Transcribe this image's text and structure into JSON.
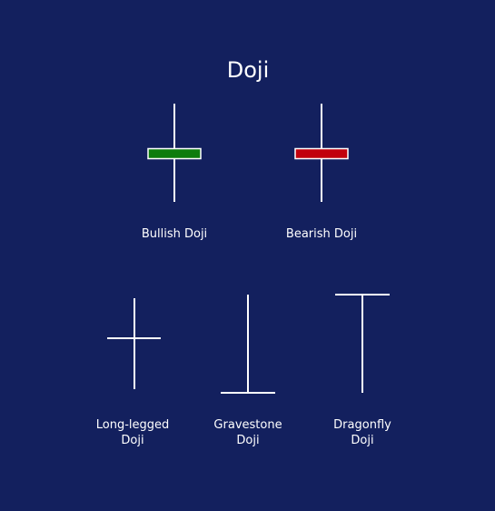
{
  "title": "Doji",
  "colors": {
    "background": "#13205e",
    "line": "#ffffff",
    "bullish_body": "#0d7c0d",
    "bearish_body": "#c1000c"
  },
  "candles": [
    {
      "id": "bullish",
      "label": "Bullish Doji",
      "body_color": "green"
    },
    {
      "id": "bearish",
      "label": "Bearish Doji",
      "body_color": "red"
    },
    {
      "id": "long-legged",
      "label_line1": "Long-legged",
      "label_line2": "Doji"
    },
    {
      "id": "gravestone",
      "label_line1": "Gravestone",
      "label_line2": "Doji"
    },
    {
      "id": "dragonfly",
      "label_line1": "Dragonfly",
      "label_line2": "Doji"
    }
  ]
}
